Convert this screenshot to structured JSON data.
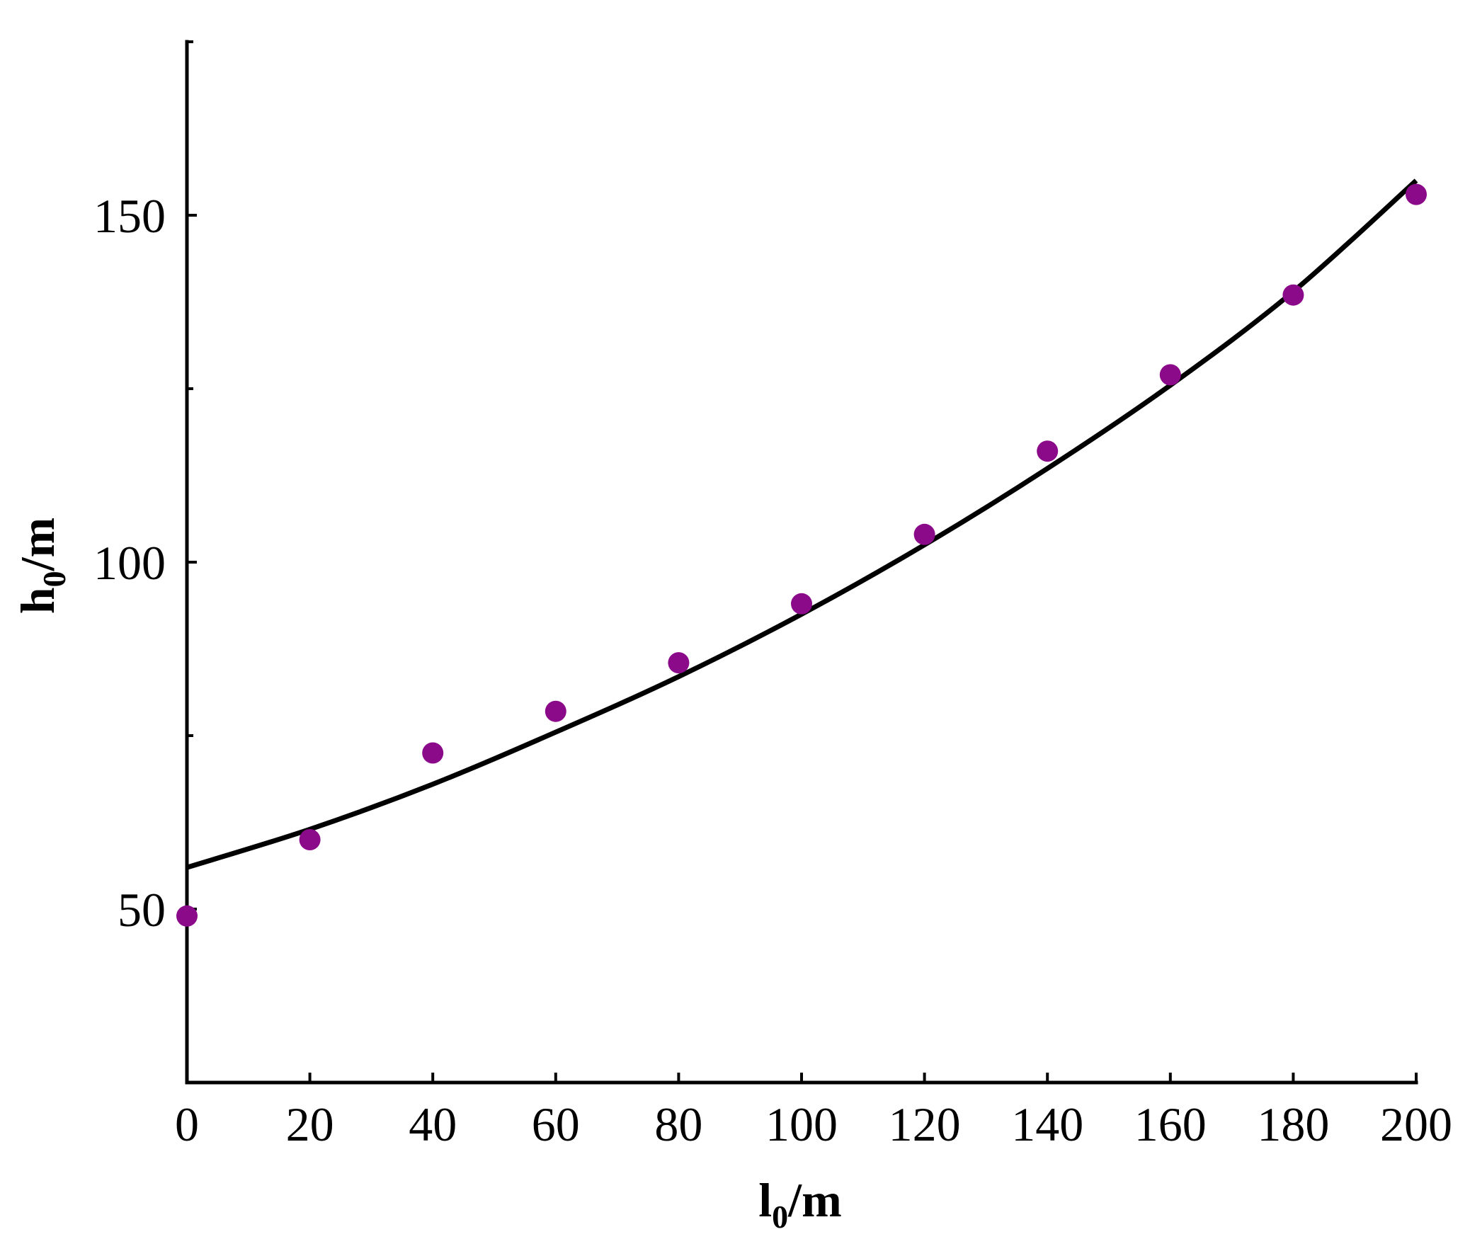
{
  "chart_data": {
    "type": "scatter",
    "title": "",
    "xlabel": {
      "main": "l",
      "sub": "0",
      "unit": "/m"
    },
    "ylabel": {
      "main": "h",
      "sub": "0",
      "unit": "/m"
    },
    "xlim": [
      0,
      200
    ],
    "ylim": [
      25,
      175
    ],
    "x_ticks": [
      0,
      20,
      40,
      60,
      80,
      100,
      120,
      140,
      160,
      180,
      200
    ],
    "y_ticks_major": [
      50,
      100,
      150
    ],
    "y_ticks_minor": [
      75,
      125,
      175
    ],
    "grid": false,
    "series": [
      {
        "kind": "points",
        "x": [
          0,
          20,
          40,
          60,
          80,
          100,
          120,
          140,
          160,
          180,
          200
        ],
        "y": [
          49,
          60,
          72.5,
          78.5,
          85.5,
          94,
          104,
          116,
          127,
          138.5,
          153
        ]
      },
      {
        "kind": "fitted-line",
        "x": [
          0,
          20,
          40,
          60,
          80,
          100,
          120,
          140,
          160,
          180,
          200
        ],
        "y": [
          56,
          61.5,
          68,
          75.5,
          83.5,
          92.5,
          102.5,
          113.5,
          125.5,
          139,
          155
        ]
      }
    ],
    "colors": {
      "points": "#8b0a8a",
      "line": "#000000",
      "axes": "#000000"
    }
  }
}
